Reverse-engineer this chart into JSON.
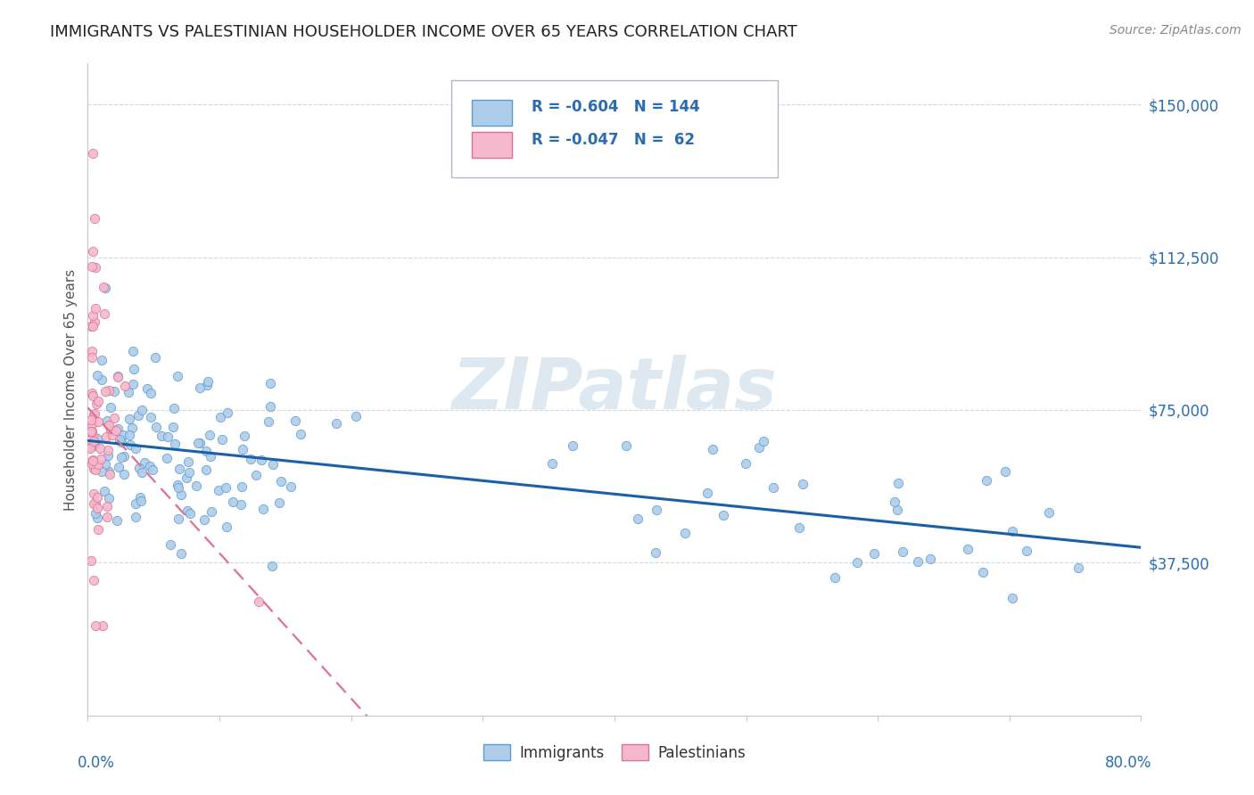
{
  "title": "IMMIGRANTS VS PALESTINIAN HOUSEHOLDER INCOME OVER 65 YEARS CORRELATION CHART",
  "source": "Source: ZipAtlas.com",
  "ylabel": "Householder Income Over 65 years",
  "xlim": [
    0.0,
    0.8
  ],
  "ylim": [
    0,
    160000
  ],
  "yticks": [
    0,
    37500,
    75000,
    112500,
    150000
  ],
  "ytick_labels": [
    "",
    "$37,500",
    "$75,000",
    "$112,500",
    "$150,000"
  ],
  "immigrants_color": "#aecde8",
  "immigrants_edge_color": "#5b9bd5",
  "palestinians_color": "#f4b8cc",
  "palestinians_edge_color": "#e07090",
  "trend_immigrants_color": "#1a5fa8",
  "trend_palestinians_color": "#e07090",
  "tick_label_color": "#2b6cb0",
  "watermark_color": "#dde8f0",
  "watermark_text": "ZIPatlas",
  "grid_color": "#d0d8e0",
  "axis_color": "#c0c8d0"
}
